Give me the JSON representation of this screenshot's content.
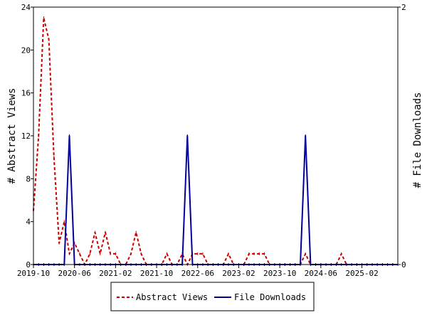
{
  "chart_data": {
    "type": "line",
    "x_axis": {
      "start": "2019-10",
      "end": "2025-09",
      "tick_labels": [
        "2019-10",
        "2020-06",
        "2021-02",
        "2021-10",
        "2022-06",
        "2023-02",
        "2023-10",
        "2024-06",
        "2025-02"
      ]
    },
    "y_left": {
      "label": "# Abstract Views",
      "range": [
        0,
        24
      ],
      "ticks": [
        "0",
        "4",
        "8",
        "12",
        "16",
        "20",
        "24"
      ]
    },
    "y_right": {
      "label": "# File Downloads",
      "range": [
        0,
        2
      ],
      "ticks": [
        "0",
        "2"
      ]
    },
    "legend": {
      "position": "bottom-center"
    },
    "series": [
      {
        "name": "Abstract Views",
        "axis": "left",
        "color": "#cc0000",
        "style": "dashed",
        "points": [
          [
            "2019-10",
            5
          ],
          [
            "2019-11",
            12
          ],
          [
            "2019-12",
            23
          ],
          [
            "2020-01",
            21
          ],
          [
            "2020-02",
            10
          ],
          [
            "2020-03",
            2
          ],
          [
            "2020-04",
            4
          ],
          [
            "2020-05",
            1
          ],
          [
            "2020-06",
            2
          ],
          [
            "2020-07",
            1
          ],
          [
            "2020-08",
            0
          ],
          [
            "2020-09",
            1
          ],
          [
            "2020-10",
            3
          ],
          [
            "2020-11",
            1
          ],
          [
            "2020-12",
            3
          ],
          [
            "2021-01",
            1
          ],
          [
            "2021-02",
            1
          ],
          [
            "2021-03",
            0
          ],
          [
            "2021-04",
            0
          ],
          [
            "2021-05",
            1
          ],
          [
            "2021-06",
            3
          ],
          [
            "2021-07",
            1
          ],
          [
            "2021-08",
            0
          ],
          [
            "2021-09",
            0
          ],
          [
            "2021-10",
            0
          ],
          [
            "2021-11",
            0
          ],
          [
            "2021-12",
            1
          ],
          [
            "2022-01",
            0
          ],
          [
            "2022-02",
            0
          ],
          [
            "2022-03",
            1
          ],
          [
            "2022-04",
            0
          ],
          [
            "2022-05",
            1
          ],
          [
            "2022-06",
            1
          ],
          [
            "2022-07",
            1
          ],
          [
            "2022-08",
            0
          ],
          [
            "2022-09",
            0
          ],
          [
            "2022-10",
            0
          ],
          [
            "2022-11",
            0
          ],
          [
            "2022-12",
            1
          ],
          [
            "2023-01",
            0
          ],
          [
            "2023-02",
            0
          ],
          [
            "2023-03",
            0
          ],
          [
            "2023-04",
            1
          ],
          [
            "2023-05",
            1
          ],
          [
            "2023-06",
            1
          ],
          [
            "2023-07",
            1
          ],
          [
            "2023-08",
            0
          ],
          [
            "2023-09",
            0
          ],
          [
            "2023-10",
            0
          ],
          [
            "2023-11",
            0
          ],
          [
            "2023-12",
            0
          ],
          [
            "2024-01",
            0
          ],
          [
            "2024-02",
            0
          ],
          [
            "2024-03",
            1
          ],
          [
            "2024-04",
            0
          ],
          [
            "2024-05",
            0
          ],
          [
            "2024-06",
            0
          ],
          [
            "2024-07",
            0
          ],
          [
            "2024-08",
            0
          ],
          [
            "2024-09",
            0
          ],
          [
            "2024-10",
            1
          ],
          [
            "2024-11",
            0
          ],
          [
            "2024-12",
            0
          ],
          [
            "2025-01",
            0
          ],
          [
            "2025-02",
            0
          ],
          [
            "2025-03",
            0
          ],
          [
            "2025-04",
            0
          ],
          [
            "2025-05",
            0
          ],
          [
            "2025-06",
            0
          ],
          [
            "2025-07",
            0
          ],
          [
            "2025-08",
            0
          ],
          [
            "2025-09",
            0
          ]
        ]
      },
      {
        "name": "File Downloads",
        "axis": "right",
        "color": "#000099",
        "style": "solid",
        "points": [
          [
            "2019-10",
            0
          ],
          [
            "2019-11",
            0
          ],
          [
            "2019-12",
            0
          ],
          [
            "2020-01",
            0
          ],
          [
            "2020-02",
            0
          ],
          [
            "2020-03",
            0
          ],
          [
            "2020-04",
            0
          ],
          [
            "2020-05",
            1
          ],
          [
            "2020-06",
            0
          ],
          [
            "2020-07",
            0
          ],
          [
            "2020-08",
            0
          ],
          [
            "2020-09",
            0
          ],
          [
            "2020-10",
            0
          ],
          [
            "2020-11",
            0
          ],
          [
            "2020-12",
            0
          ],
          [
            "2021-01",
            0
          ],
          [
            "2021-02",
            0
          ],
          [
            "2021-03",
            0
          ],
          [
            "2021-04",
            0
          ],
          [
            "2021-05",
            0
          ],
          [
            "2021-06",
            0
          ],
          [
            "2021-07",
            0
          ],
          [
            "2021-08",
            0
          ],
          [
            "2021-09",
            0
          ],
          [
            "2021-10",
            0
          ],
          [
            "2021-11",
            0
          ],
          [
            "2021-12",
            0
          ],
          [
            "2022-01",
            0
          ],
          [
            "2022-02",
            0
          ],
          [
            "2022-03",
            0
          ],
          [
            "2022-04",
            1
          ],
          [
            "2022-05",
            0
          ],
          [
            "2022-06",
            0
          ],
          [
            "2022-07",
            0
          ],
          [
            "2022-08",
            0
          ],
          [
            "2022-09",
            0
          ],
          [
            "2022-10",
            0
          ],
          [
            "2022-11",
            0
          ],
          [
            "2022-12",
            0
          ],
          [
            "2023-01",
            0
          ],
          [
            "2023-02",
            0
          ],
          [
            "2023-03",
            0
          ],
          [
            "2023-04",
            0
          ],
          [
            "2023-05",
            0
          ],
          [
            "2023-06",
            0
          ],
          [
            "2023-07",
            0
          ],
          [
            "2023-08",
            0
          ],
          [
            "2023-09",
            0
          ],
          [
            "2023-10",
            0
          ],
          [
            "2023-11",
            0
          ],
          [
            "2023-12",
            0
          ],
          [
            "2024-01",
            0
          ],
          [
            "2024-02",
            0
          ],
          [
            "2024-03",
            1
          ],
          [
            "2024-04",
            0
          ],
          [
            "2024-05",
            0
          ],
          [
            "2024-06",
            0
          ],
          [
            "2024-07",
            0
          ],
          [
            "2024-08",
            0
          ],
          [
            "2024-09",
            0
          ],
          [
            "2024-10",
            0
          ],
          [
            "2024-11",
            0
          ],
          [
            "2024-12",
            0
          ],
          [
            "2025-01",
            0
          ],
          [
            "2025-02",
            0
          ],
          [
            "2025-03",
            0
          ],
          [
            "2025-04",
            0
          ],
          [
            "2025-05",
            0
          ],
          [
            "2025-06",
            0
          ],
          [
            "2025-07",
            0
          ],
          [
            "2025-08",
            0
          ],
          [
            "2025-09",
            0
          ]
        ]
      }
    ]
  }
}
